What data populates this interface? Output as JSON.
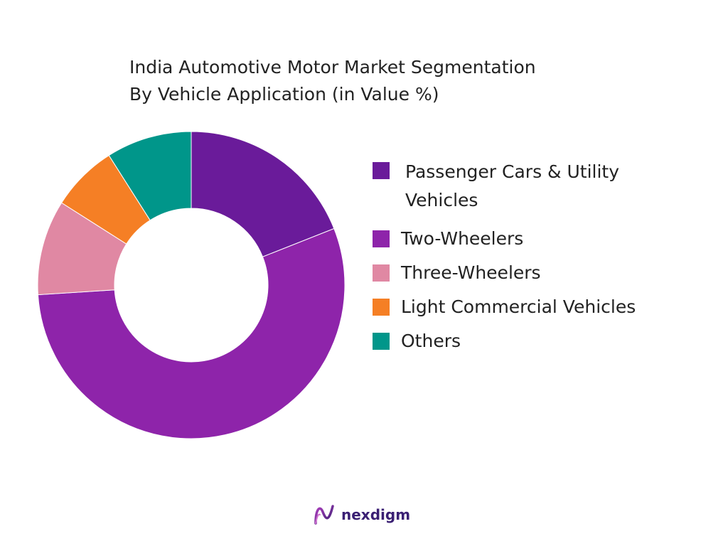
{
  "chart_data": {
    "type": "pie",
    "style": "donut",
    "title": [
      "India Automotive Motor Market Segmentation",
      "By Vehicle Application (in Value %)"
    ],
    "categories": [
      "Passenger Cars & Utility Vehicles",
      "Two-Wheelers",
      "Three-Wheelers",
      "Light Commercial Vehicles",
      "Others"
    ],
    "values": [
      19,
      55,
      10,
      7,
      9
    ],
    "colors": [
      "#6a1b9a",
      "#8e24aa",
      "#e088a3",
      "#f57f25",
      "#00968a"
    ],
    "legend_position": "right"
  },
  "branding": {
    "name": "nexdigm",
    "color": "#3a1f73"
  }
}
